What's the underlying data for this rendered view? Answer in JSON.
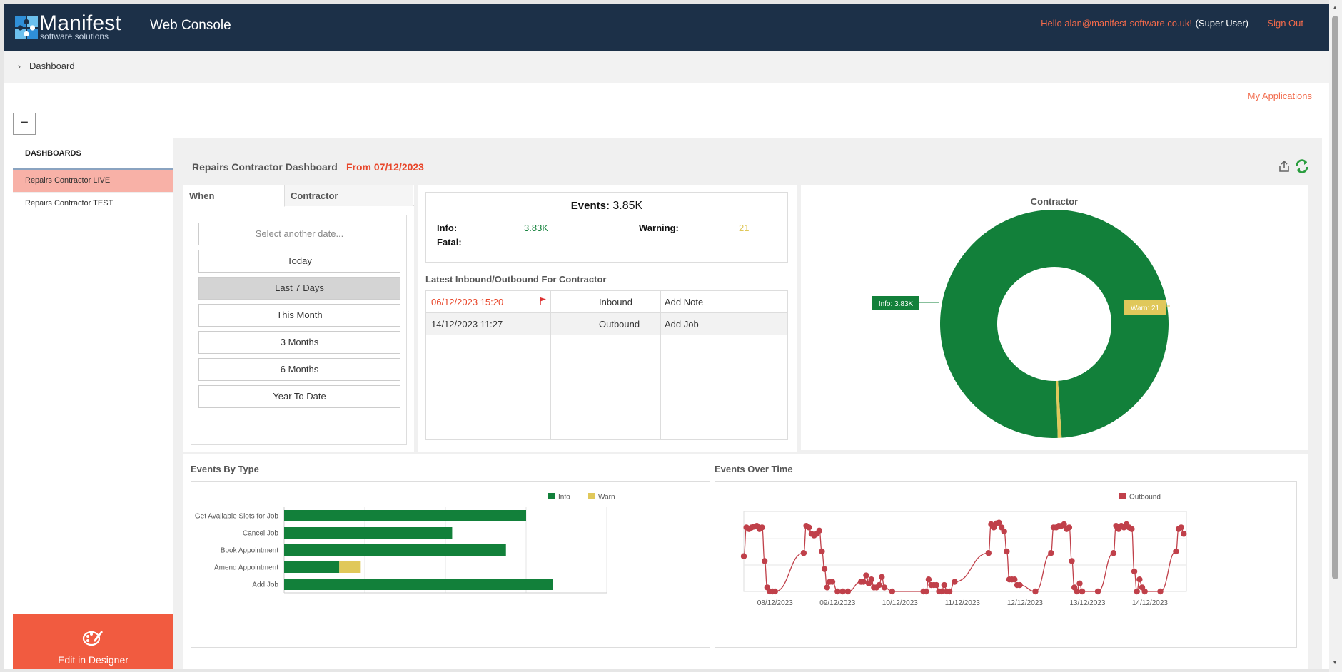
{
  "header": {
    "logo_name": "Manifest",
    "logo_tagline": "software solutions",
    "app_title": "Web Console",
    "greeting": "Hello alan@manifest-software.co.uk!",
    "role": "(Super User)",
    "sign_out": "Sign Out"
  },
  "breadcrumb": {
    "item": "Dashboard"
  },
  "my_applications": "My Applications",
  "collapse_symbol": "−",
  "sidebar": {
    "heading": "DASHBOARDS",
    "items": [
      {
        "label": "Repairs Contractor LIVE",
        "active": true
      },
      {
        "label": "Repairs Contractor TEST",
        "active": false
      }
    ],
    "edit_designer": "Edit in Designer"
  },
  "dashboard": {
    "title": "Repairs Contractor Dashboard",
    "from": "From 07/12/2023"
  },
  "filters": {
    "tabs": [
      "When",
      "Contractor"
    ],
    "date_placeholder": "Select another date...",
    "options": [
      "Today",
      "Last 7 Days",
      "This Month",
      "3 Months",
      "6 Months",
      "Year To Date"
    ],
    "selected": "Last 7 Days"
  },
  "stats": {
    "events_label": "Events:",
    "events_value": "3.85K",
    "info_label": "Info:",
    "info_value": "3.83K",
    "warning_label": "Warning:",
    "warning_value": "21",
    "fatal_label": "Fatal:"
  },
  "latest": {
    "title": "Latest Inbound/Outbound For Contractor",
    "rows": [
      {
        "time": "06/12/2023 15:20",
        "flag": true,
        "direction": "Inbound",
        "action": "Add Note"
      },
      {
        "time": "14/12/2023 11:27",
        "flag": false,
        "direction": "Outbound",
        "action": "Add Job"
      }
    ]
  },
  "colors": {
    "info": "#12803a",
    "warn": "#e0c85a",
    "outbound": "#c0404a",
    "accent": "#f15b40",
    "header_bg": "#1c3048"
  },
  "chart_data": [
    {
      "type": "pie",
      "title": "Contractor",
      "labels": [
        "Info",
        "Warn"
      ],
      "values": [
        3830,
        21
      ],
      "data_labels": [
        "Info: 3.83K",
        "Warn: 21"
      ],
      "donut": true
    },
    {
      "type": "bar",
      "orientation": "horizontal",
      "stacked": true,
      "title": "Events By Type",
      "categories": [
        "Get Available Slots for Job",
        "Cancel Job",
        "Book Appointment",
        "Amend Appointment",
        "Add Job"
      ],
      "series": [
        {
          "name": "Info",
          "values": [
            900,
            625,
            825,
            205,
            1000
          ]
        },
        {
          "name": "Warn",
          "values": [
            0,
            0,
            0,
            80,
            0
          ]
        }
      ],
      "xlim": [
        0,
        1200
      ],
      "legend": "top-right",
      "grid": true
    },
    {
      "type": "line",
      "title": "Events Over Time",
      "series": [
        {
          "name": "Outbound",
          "points": [
            [
              "07/12 12:00",
              44
            ],
            [
              "07/12 13:00",
              80
            ],
            [
              "07/12 14:00",
              78
            ],
            [
              "07/12 15:00",
              80
            ],
            [
              "07/12 16:00",
              81
            ],
            [
              "07/12 17:00",
              82
            ],
            [
              "07/12 18:00",
              78
            ],
            [
              "07/12 19:00",
              80
            ],
            [
              "07/12 20:00",
              38
            ],
            [
              "07/12 21:00",
              5
            ],
            [
              "07/12 22:00",
              0
            ],
            [
              "07/12 23:00",
              0
            ],
            [
              "08/12 00:00",
              0
            ],
            [
              "08/12 11:00",
              48
            ],
            [
              "08/12 12:00",
              82
            ],
            [
              "08/12 13:00",
              80
            ],
            [
              "08/12 14:00",
              72
            ],
            [
              "08/12 15:00",
              70
            ],
            [
              "08/12 16:00",
              72
            ],
            [
              "08/12 17:00",
              76
            ],
            [
              "08/12 18:00",
              50
            ],
            [
              "08/12 19:00",
              28
            ],
            [
              "08/12 20:00",
              5
            ],
            [
              "08/12 21:00",
              12
            ],
            [
              "08/12 22:00",
              12
            ],
            [
              "09/12 00:00",
              0
            ],
            [
              "09/12 02:00",
              0
            ],
            [
              "09/12 04:00",
              0
            ],
            [
              "09/12 09:00",
              12
            ],
            [
              "09/12 10:00",
              12
            ],
            [
              "09/12 11:00",
              20
            ],
            [
              "09/12 12:00",
              10
            ],
            [
              "09/12 13:00",
              15
            ],
            [
              "09/12 14:00",
              5
            ],
            [
              "09/12 15:00",
              5
            ],
            [
              "09/12 16:00",
              8
            ],
            [
              "09/12 17:00",
              18
            ],
            [
              "09/12 18:00",
              5
            ],
            [
              "09/12 21:00",
              0
            ],
            [
              "10/12 09:00",
              0
            ],
            [
              "10/12 10:00",
              0
            ],
            [
              "10/12 11:00",
              15
            ],
            [
              "10/12 12:00",
              8
            ],
            [
              "10/12 13:00",
              8
            ],
            [
              "10/12 14:00",
              8
            ],
            [
              "10/12 15:00",
              0
            ],
            [
              "10/12 16:00",
              0
            ],
            [
              "10/12 17:00",
              8
            ],
            [
              "10/12 18:00",
              0
            ],
            [
              "10/12 19:00",
              0
            ],
            [
              "10/12 21:00",
              12
            ],
            [
              "11/12 10:00",
              48
            ],
            [
              "11/12 11:00",
              84
            ],
            [
              "11/12 12:00",
              80
            ],
            [
              "11/12 13:00",
              85
            ],
            [
              "11/12 14:00",
              86
            ],
            [
              "11/12 15:00",
              80
            ],
            [
              "11/12 16:00",
              75
            ],
            [
              "11/12 17:00",
              50
            ],
            [
              "11/12 18:00",
              15
            ],
            [
              "11/12 19:00",
              15
            ],
            [
              "11/12 20:00",
              15
            ],
            [
              "11/12 21:00",
              8
            ],
            [
              "11/12 22:00",
              8
            ],
            [
              "12/12 04:00",
              0
            ],
            [
              "12/12 10:00",
              48
            ],
            [
              "12/12 11:00",
              80
            ],
            [
              "12/12 12:00",
              80
            ],
            [
              "12/12 13:00",
              82
            ],
            [
              "12/12 14:00",
              82
            ],
            [
              "12/12 15:00",
              84
            ],
            [
              "12/12 16:00",
              78
            ],
            [
              "12/12 17:00",
              80
            ],
            [
              "12/12 18:00",
              38
            ],
            [
              "12/12 19:00",
              5
            ],
            [
              "12/12 20:00",
              0
            ],
            [
              "12/12 21:00",
              10
            ],
            [
              "12/12 22:00",
              0
            ],
            [
              "13/12 04:00",
              0
            ],
            [
              "13/12 10:00",
              48
            ],
            [
              "13/12 11:00",
              82
            ],
            [
              "13/12 12:00",
              78
            ],
            [
              "13/12 13:00",
              82
            ],
            [
              "13/12 14:00",
              80
            ],
            [
              "13/12 15:00",
              84
            ],
            [
              "13/12 16:00",
              80
            ],
            [
              "13/12 17:00",
              78
            ],
            [
              "13/12 18:00",
              25
            ],
            [
              "13/12 19:00",
              0
            ],
            [
              "13/12 20:00",
              15
            ],
            [
              "13/12 21:00",
              5
            ],
            [
              "13/12 22:00",
              0
            ],
            [
              "14/12 04:00",
              0
            ],
            [
              "14/12 10:00",
              50
            ],
            [
              "14/12 11:00",
              78
            ],
            [
              "14/12 12:00",
              80
            ],
            [
              "14/12 13:00",
              72
            ]
          ]
        }
      ],
      "x_tick_labels": [
        "08/12/2023",
        "09/12/2023",
        "10/12/2023",
        "11/12/2023",
        "12/12/2023",
        "13/12/2023",
        "14/12/2023"
      ],
      "x_range": [
        "07/12 12:00",
        "14/12 14:00"
      ],
      "ylim": [
        0,
        100
      ],
      "legend": "top-right",
      "grid": true
    }
  ]
}
